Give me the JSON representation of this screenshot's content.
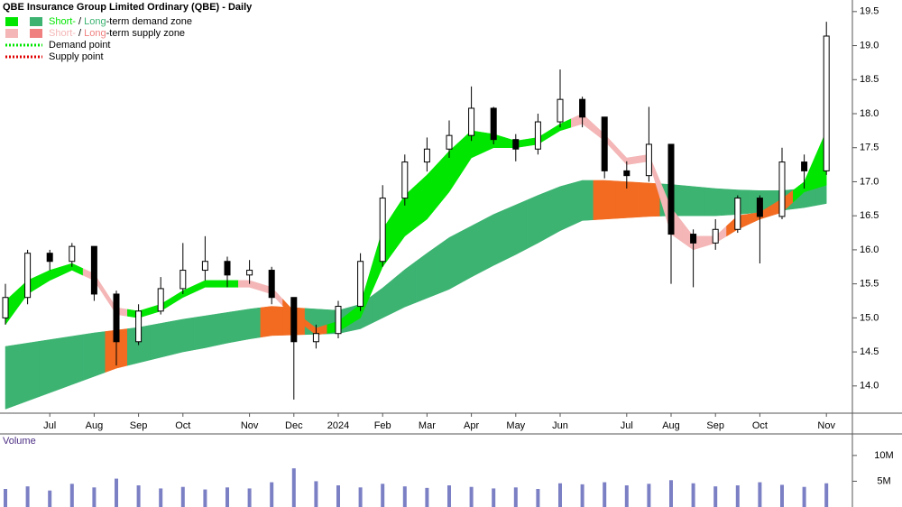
{
  "chart_data": [
    {
      "type": "candlestick",
      "title": "QBE Insurance Group Limited Ordinary (QBE) - Daily",
      "categories": [
        null,
        null,
        "Jul",
        null,
        "Aug",
        null,
        "Sep",
        null,
        "Oct",
        null,
        null,
        "Nov",
        null,
        "Dec",
        null,
        "2024",
        null,
        "Feb",
        null,
        "Mar",
        null,
        "Apr",
        null,
        "May",
        null,
        "Jun",
        null,
        null,
        "Jul",
        null,
        "Aug",
        null,
        "Sep",
        null,
        "Oct",
        null,
        null,
        "Nov"
      ],
      "open": [
        15.0,
        15.3,
        15.95,
        15.83,
        16.05,
        15.35,
        14.65,
        15.1,
        15.43,
        15.7,
        15.83,
        15.63,
        15.7,
        15.3,
        14.65,
        14.77,
        15.17,
        15.83,
        16.76,
        17.29,
        17.48,
        17.68,
        18.08,
        17.62,
        17.48,
        17.88,
        18.21,
        17.95,
        17.16,
        17.09,
        17.55,
        16.23,
        16.1,
        16.3,
        16.76,
        16.49,
        17.29,
        17.16
      ],
      "high": [
        15.5,
        16.0,
        16.0,
        16.1,
        16.05,
        15.4,
        15.2,
        15.6,
        16.1,
        16.2,
        15.9,
        15.85,
        15.75,
        15.3,
        14.9,
        15.25,
        15.95,
        16.95,
        17.4,
        17.65,
        17.9,
        18.4,
        18.1,
        17.7,
        18.0,
        18.65,
        18.25,
        17.95,
        17.3,
        18.1,
        17.55,
        16.3,
        16.45,
        16.8,
        16.8,
        17.5,
        17.4,
        19.35
      ],
      "low": [
        14.9,
        15.2,
        15.7,
        15.75,
        15.25,
        14.3,
        14.6,
        15.05,
        15.35,
        15.55,
        15.45,
        15.5,
        15.2,
        13.8,
        14.55,
        14.7,
        15.1,
        15.75,
        16.65,
        17.15,
        17.35,
        17.6,
        17.55,
        17.3,
        17.4,
        17.8,
        17.8,
        17.05,
        16.9,
        17.0,
        15.5,
        15.45,
        16.0,
        16.25,
        15.8,
        16.45,
        16.9,
        17.1
      ],
      "close": [
        15.3,
        15.95,
        15.83,
        16.05,
        15.35,
        14.65,
        15.1,
        15.43,
        15.7,
        15.83,
        15.63,
        15.7,
        15.3,
        14.65,
        14.77,
        15.17,
        15.83,
        16.76,
        17.29,
        17.48,
        17.68,
        18.08,
        17.62,
        17.48,
        17.88,
        18.21,
        17.95,
        17.16,
        17.09,
        17.55,
        16.23,
        16.1,
        16.3,
        16.76,
        16.49,
        17.29,
        17.16,
        19.14
      ],
      "up_color": "#ffffff",
      "down_color": "#000000",
      "zones": [
        {
          "upper": [
            14.58,
            14.63,
            14.68,
            14.73,
            14.78,
            14.82,
            14.86,
            14.92,
            14.98,
            15.03,
            15.08,
            15.13,
            15.17,
            15.15,
            15.13,
            15.11,
            15.2,
            15.44,
            15.71,
            15.95,
            16.18,
            16.35,
            16.52,
            16.66,
            16.8,
            16.93,
            17.02,
            17.02,
            17.0,
            16.98,
            16.96,
            16.93,
            16.9,
            16.88,
            16.87,
            16.87,
            16.9,
            16.98
          ],
          "lower": [
            13.66,
            13.78,
            13.9,
            14.02,
            14.14,
            14.26,
            14.34,
            14.42,
            14.5,
            14.56,
            14.63,
            14.69,
            14.74,
            14.75,
            14.76,
            14.77,
            14.84,
            15.0,
            15.16,
            15.29,
            15.42,
            15.6,
            15.77,
            15.93,
            16.1,
            16.28,
            16.43,
            16.45,
            16.47,
            16.49,
            16.5,
            16.5,
            16.5,
            16.52,
            16.55,
            16.58,
            16.62,
            16.68
          ],
          "colors": [
            "#3cb371",
            "#3cb371",
            "#3cb371",
            "#3cb371",
            "#3cb371",
            "#f26b21",
            "#3cb371",
            "#3cb371",
            "#3cb371",
            "#3cb371",
            "#3cb371",
            "#3cb371",
            "#f26b21",
            "#f26b21",
            "#3cb371",
            "#3cb371",
            "#3cb371",
            "#3cb371",
            "#3cb371",
            "#3cb371",
            "#3cb371",
            "#3cb371",
            "#3cb371",
            "#3cb371",
            "#3cb371",
            "#3cb371",
            "#3cb371",
            "#f26b21",
            "#f26b21",
            "#f26b21",
            "#3cb371",
            "#3cb371",
            "#3cb371",
            "#3cb371",
            "#3cb371",
            "#3cb371",
            "#3cb371",
            "#3cb371"
          ]
        },
        {
          "upper": [
            15.25,
            15.55,
            15.7,
            15.8,
            15.65,
            15.15,
            15.1,
            15.2,
            15.4,
            15.55,
            15.55,
            15.55,
            15.45,
            15.1,
            14.85,
            14.95,
            15.2,
            16.3,
            16.8,
            17.1,
            17.45,
            17.75,
            17.7,
            17.6,
            17.65,
            17.85,
            18.0,
            17.7,
            17.35,
            17.4,
            16.62,
            16.2,
            16.2,
            16.5,
            16.55,
            16.75,
            17.0,
            17.75
          ],
          "lower": [
            14.9,
            15.35,
            15.55,
            15.7,
            15.55,
            15.05,
            15.0,
            15.1,
            15.3,
            15.45,
            15.45,
            15.45,
            15.35,
            15.0,
            14.75,
            14.8,
            15.0,
            15.75,
            16.2,
            16.45,
            16.85,
            17.35,
            17.5,
            17.5,
            17.55,
            17.75,
            17.85,
            17.6,
            17.25,
            17.3,
            16.23,
            16.0,
            16.1,
            16.3,
            16.45,
            16.55,
            16.85,
            16.95
          ],
          "colors": [
            "#00e600",
            "#00e600",
            "#00e600",
            "#00e600",
            "#f4b6b6",
            "#f4b6b6",
            "#00e600",
            "#00e600",
            "#00e600",
            "#00e600",
            "#00e600",
            "#f4b6b6",
            "#f4b6b6",
            "#f26b21",
            "#f26b21",
            "#00e600",
            "#00e600",
            "#00e600",
            "#00e600",
            "#00e600",
            "#00e600",
            "#00e600",
            "#00e600",
            "#00e600",
            "#00e600",
            "#00e600",
            "#f4b6b6",
            "#f4b6b6",
            "#f4b6b6",
            "#f4b6b6",
            "#f4b6b6",
            "#f4b6b6",
            "#f4b6b6",
            "#f26b21",
            "#f26b21",
            "#f26b21",
            "#00e600",
            "#00e600"
          ]
        }
      ],
      "legend": [
        {
          "short": "Short-",
          "sep": " / ",
          "long": "Long",
          "rest": "-term demand zone",
          "short_color": "#00e600",
          "long_color": "#3cb371"
        },
        {
          "short": "Short-",
          "sep": " / ",
          "long": "Long",
          "rest": "-term supply zone",
          "short_color": "#f4b6b6",
          "long_color": "#f08080"
        },
        {
          "label": "Demand point",
          "color": "#00e600"
        },
        {
          "label": "Supply point",
          "color": "#e00000"
        }
      ],
      "ylim": [
        13.6,
        19.67
      ],
      "yticks": [
        {
          "value": 14,
          "label": "14.0"
        },
        14.5,
        {
          "value": 15,
          "label": "15.0"
        },
        15.5,
        {
          "value": 16,
          "label": "16.0"
        },
        16.5,
        {
          "value": 17,
          "label": "17.0"
        },
        17.5,
        {
          "value": 18,
          "label": "18.0"
        },
        18.5,
        {
          "value": 19,
          "label": "19.0"
        },
        19.5
      ]
    },
    {
      "type": "bar",
      "title": "Volume",
      "values": [
        3500000,
        4000000,
        3200000,
        4500000,
        3800000,
        5500000,
        4200000,
        3600000,
        3900000,
        3400000,
        3800000,
        3600000,
        4800000,
        7500000,
        5000000,
        4200000,
        3800000,
        4500000,
        4000000,
        3700000,
        4200000,
        3900000,
        3600000,
        3800000,
        3500000,
        4600000,
        4400000,
        4800000,
        4200000,
        4500000,
        5200000,
        4600000,
        4000000,
        4200000,
        4800000,
        4300000,
        3900000,
        4600000
      ],
      "color": "#7b7fc4",
      "ylim": [
        0,
        14000000
      ],
      "yticks": [
        {
          "value": 5000000,
          "label": "5M"
        },
        {
          "value": 10000000,
          "label": "10M"
        }
      ]
    }
  ]
}
